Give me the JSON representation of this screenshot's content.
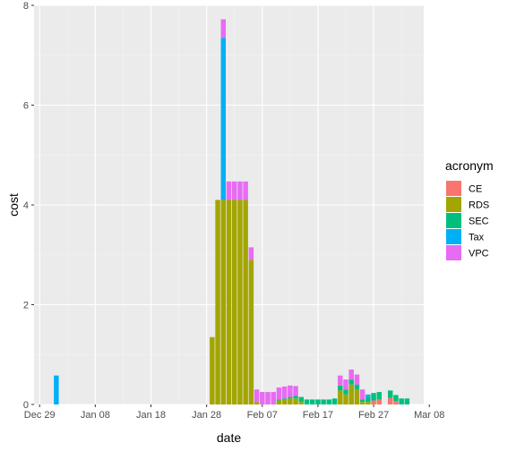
{
  "chart_data": {
    "type": "bar",
    "stacked": true,
    "xlabel": "date",
    "ylabel": "cost",
    "x_ticks": [
      "Dec 29",
      "Jan 08",
      "Jan 18",
      "Jan 28",
      "Feb 07",
      "Feb 17",
      "Feb 27",
      "Mar 08"
    ],
    "y_ticks": [
      0,
      2,
      4,
      6,
      8
    ],
    "ylim": [
      0,
      8
    ],
    "xlim": [
      "Dec 28",
      "Mar 07"
    ],
    "grid": true,
    "legend": {
      "title": "acronym",
      "position": "right",
      "entries": [
        "CE",
        "RDS",
        "SEC",
        "Tax",
        "VPC"
      ]
    },
    "colors": {
      "CE": "#F8766D",
      "RDS": "#A3A500",
      "SEC": "#00BF7D",
      "Tax": "#00B0F6",
      "VPC": "#E76BF3"
    },
    "stack_order": [
      "CE",
      "RDS",
      "SEC",
      "Tax",
      "VPC"
    ],
    "x": [
      "Jan 01",
      "Jan 29",
      "Jan 30",
      "Jan 31",
      "Feb 01",
      "Feb 02",
      "Feb 03",
      "Feb 04",
      "Feb 05",
      "Feb 06",
      "Feb 07",
      "Feb 08",
      "Feb 09",
      "Feb 10",
      "Feb 11",
      "Feb 12",
      "Feb 13",
      "Feb 14",
      "Feb 15",
      "Feb 16",
      "Feb 17",
      "Feb 18",
      "Feb 19",
      "Feb 20",
      "Feb 21",
      "Feb 22",
      "Feb 23",
      "Feb 24",
      "Feb 25",
      "Feb 26",
      "Feb 27",
      "Feb 28",
      "Mar 01",
      "Mar 02",
      "Mar 03",
      "Mar 04"
    ],
    "series": [
      {
        "name": "CE",
        "values": [
          0,
          0,
          0,
          0,
          0,
          0,
          0,
          0,
          0,
          0,
          0,
          0,
          0,
          0,
          0,
          0,
          0,
          0,
          0,
          0,
          0,
          0,
          0,
          0,
          0,
          0,
          0,
          0,
          0,
          0,
          0.08,
          0.1,
          0.13,
          0.07,
          0,
          0
        ]
      },
      {
        "name": "RDS",
        "values": [
          0,
          1.35,
          4.1,
          4.1,
          4.1,
          4.1,
          4.1,
          4.1,
          2.9,
          0.05,
          0,
          0,
          0,
          0.08,
          0.1,
          0.12,
          0.12,
          0.05,
          0,
          0,
          0,
          0,
          0,
          0,
          0.28,
          0.2,
          0.4,
          0.3,
          0.05,
          0.05,
          0,
          0,
          0,
          0,
          0,
          0
        ]
      },
      {
        "name": "SEC",
        "values": [
          0,
          0,
          0,
          0,
          0,
          0,
          0,
          0,
          0,
          0,
          0,
          0,
          0,
          0.02,
          0.02,
          0.03,
          0.05,
          0.1,
          0.1,
          0.1,
          0.1,
          0.1,
          0.1,
          0.12,
          0.1,
          0.1,
          0.1,
          0.1,
          0.05,
          0.1,
          0.15,
          0.15,
          0.15,
          0.12,
          0.12,
          0.12
        ]
      },
      {
        "name": "Tax",
        "values": [
          0.58,
          0,
          0,
          3.25,
          0,
          0,
          0,
          0,
          0,
          0,
          0,
          0,
          0,
          0,
          0,
          0,
          0,
          0,
          0,
          0,
          0,
          0,
          0,
          0,
          0,
          0,
          0,
          0,
          0,
          0.05,
          0,
          0,
          0,
          0,
          0,
          0
        ]
      },
      {
        "name": "VPC",
        "values": [
          0,
          0,
          0,
          0.37,
          0.37,
          0.37,
          0.37,
          0.37,
          0.25,
          0.25,
          0.25,
          0.25,
          0.25,
          0.24,
          0.24,
          0.23,
          0.2,
          0,
          0,
          0,
          0,
          0,
          0,
          0,
          0.2,
          0.2,
          0.2,
          0.2,
          0.2,
          0,
          0,
          0,
          0,
          0,
          0,
          0
        ]
      }
    ]
  }
}
